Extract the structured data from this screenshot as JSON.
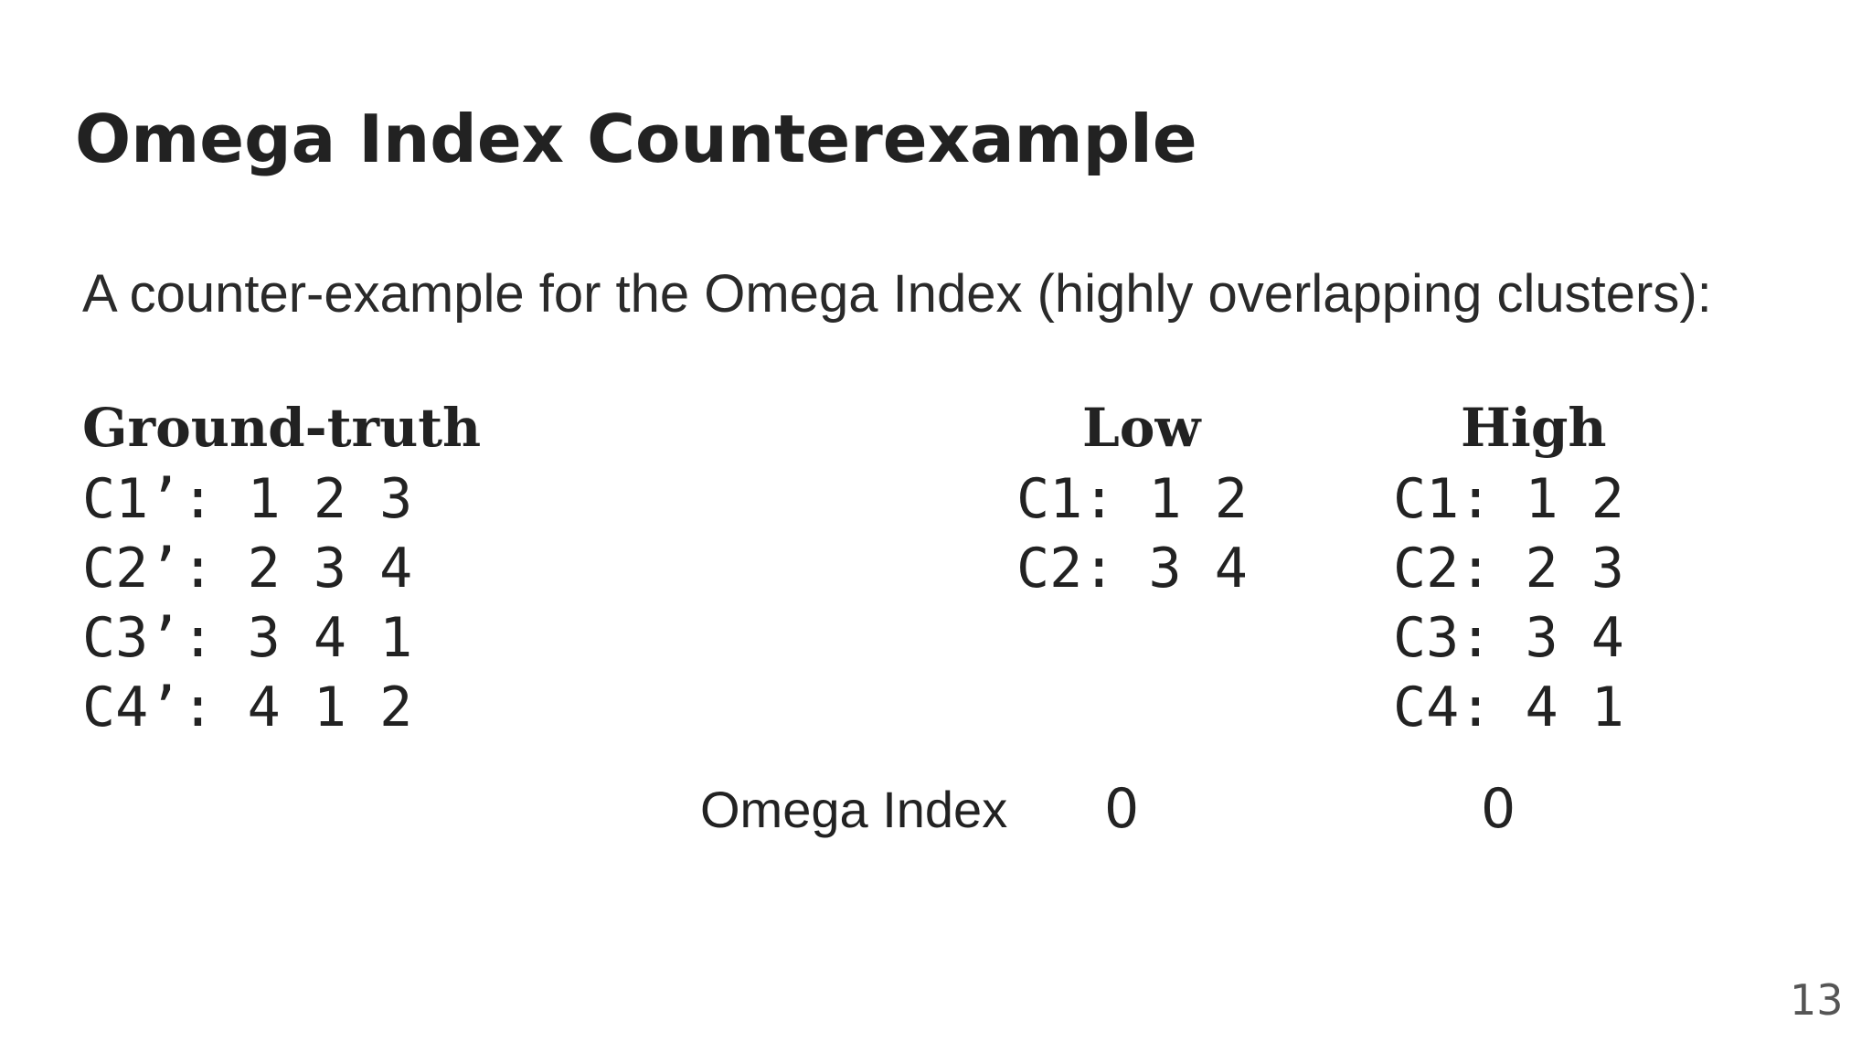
{
  "slide": {
    "title": "Omega Index Counterexample",
    "intro": "A counter-example for the Omega Index (highly overlapping clusters):",
    "page_number": "13"
  },
  "ground_truth": {
    "heading": "Ground-truth",
    "rows": [
      "C1’: 1 2 3",
      "C2’: 2 3 4",
      "C3’: 3 4 1",
      "C4’: 4 1 2"
    ]
  },
  "low": {
    "heading": "Low",
    "rows": [
      "C1: 1 2",
      "C2: 3 4"
    ]
  },
  "high": {
    "heading": "High",
    "rows": [
      "C1: 1 2",
      "C2: 2 3",
      "C3: 3 4",
      "C4: 4 1"
    ]
  },
  "omega": {
    "label": "Omega Index",
    "low_value": "0",
    "high_value": "0"
  }
}
